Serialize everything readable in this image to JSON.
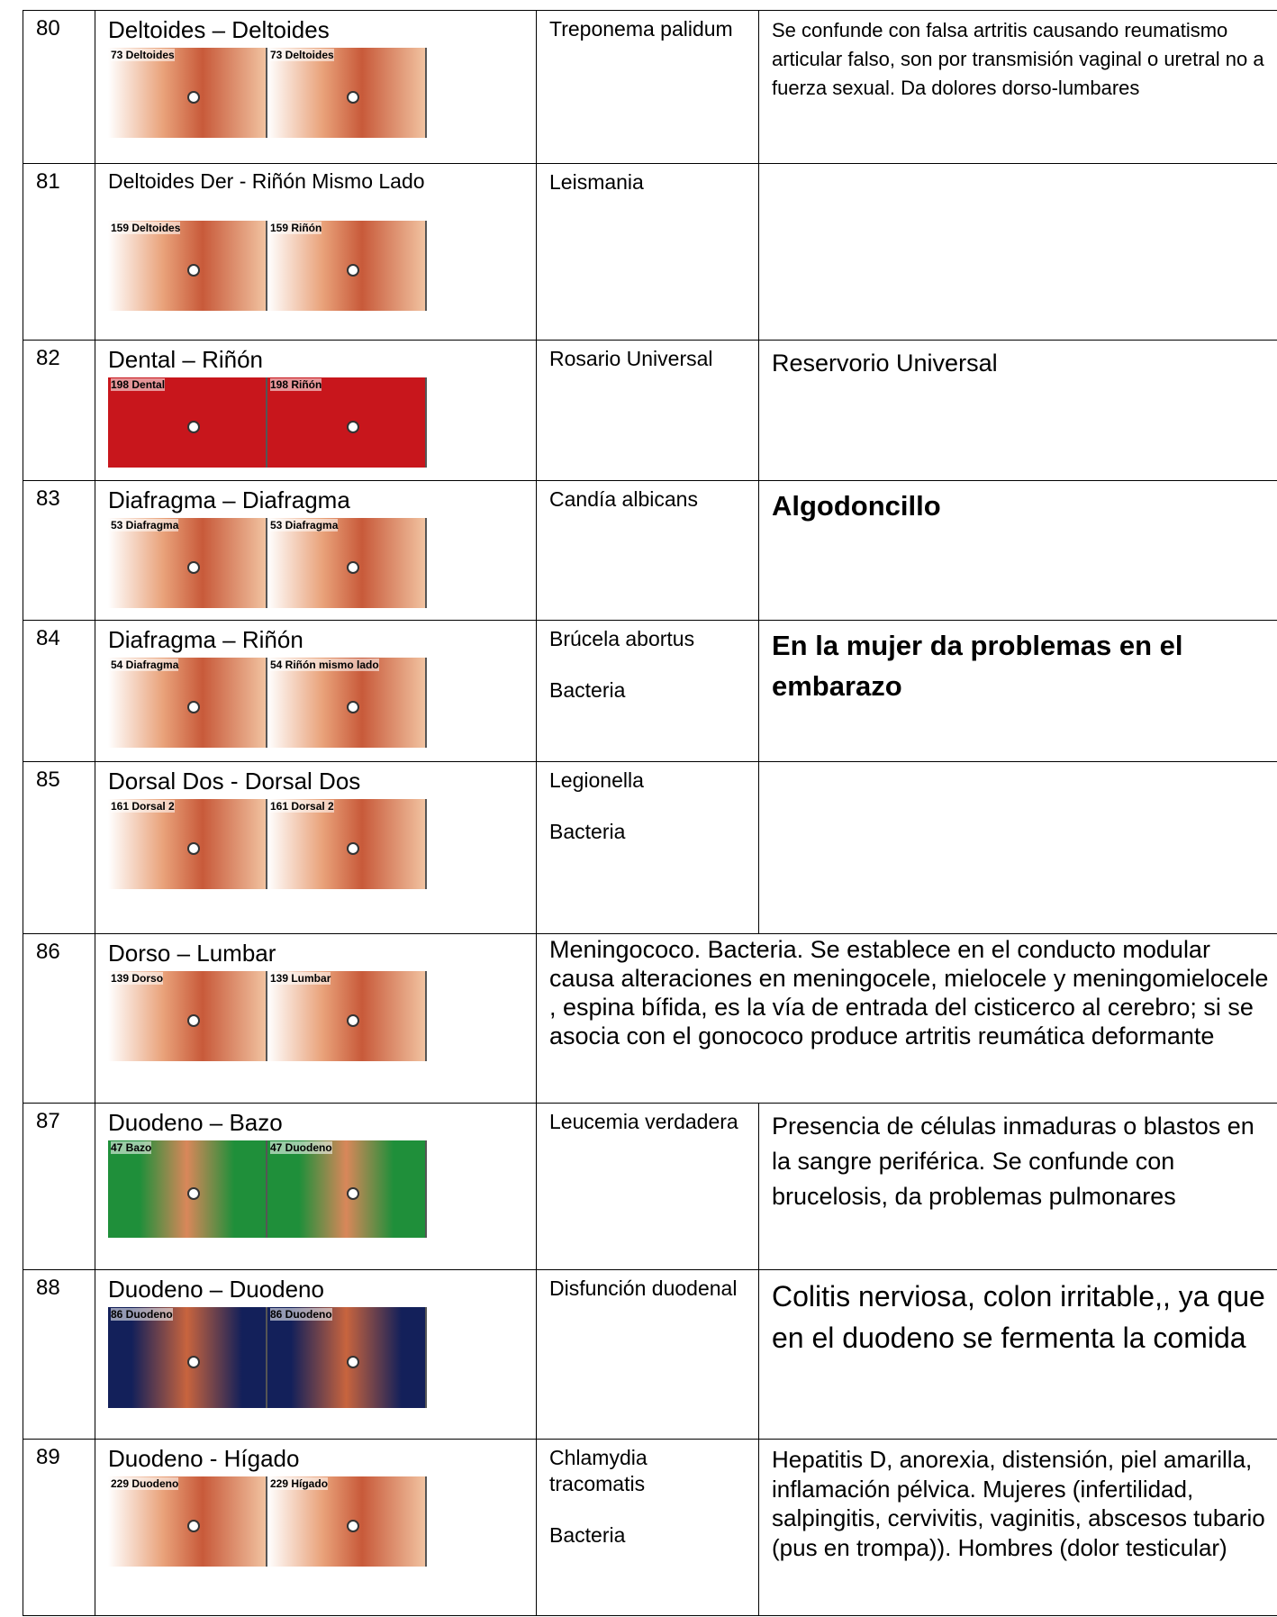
{
  "table": {
    "rows": [
      {
        "number": "80",
        "point": "Deltoides – Deltoides",
        "images": [
          "73 Deltoides",
          "73 Deltoides"
        ],
        "agent": [
          "Treponema palidum"
        ],
        "description": "Se confunde con falsa artritis causando reumatismo articular falso, son por transmisión vaginal o uretral no a fuerza sexual. Da dolores dorso-lumbares"
      },
      {
        "number": "81",
        "point": "Deltoides Der - Riñón Mismo Lado",
        "images": [
          "159 Deltoides",
          "159 Riñón"
        ],
        "agent": [
          "Leismania"
        ]
      },
      {
        "number": "82",
        "point": "Dental – Riñón",
        "images": [
          "198 Dental",
          "198 Riñón"
        ],
        "agent": [
          "Rosario Universal"
        ],
        "description": "Reservorio Universal"
      },
      {
        "number": "83",
        "point": "Diafragma – Diafragma",
        "images": [
          "53 Diafragma",
          "53 Diafragma"
        ],
        "agent": [
          "Candía albicans"
        ],
        "description": "Algodoncillo"
      },
      {
        "number": "84",
        "point": "Diafragma – Riñón",
        "images": [
          "54 Diafragma",
          "54 Riñón mismo lado"
        ],
        "agent": [
          "Brúcela abortus",
          "Bacteria"
        ],
        "description": "En la mujer da problemas en el embarazo"
      },
      {
        "number": "85",
        "point": "Dorsal Dos - Dorsal Dos",
        "images": [
          "161 Dorsal 2",
          "161 Dorsal 2"
        ],
        "agent": [
          "Legionella",
          "Bacteria"
        ]
      },
      {
        "number": "86",
        "point": "Dorso – Lumbar",
        "images": [
          "139 Dorso",
          "139 Lumbar"
        ],
        "merged": "Meningococo. Bacteria. Se establece en el conducto modular causa alteraciones en meningocele, mielocele y meningomielocele , espina bífida, es la vía de entrada del cisticerco al cerebro; si se asocia con el gonococo produce artritis reumática deformante"
      },
      {
        "number": "87",
        "point": "Duodeno – Bazo",
        "images": [
          "47 Bazo",
          "47 Duodeno"
        ],
        "agent": [
          "Leucemia verdadera"
        ],
        "description": "Presencia de células inmaduras o blastos en la sangre periférica. Se confunde con brucelosis, da problemas pulmonares"
      },
      {
        "number": "88",
        "point": "Duodeno – Duodeno",
        "images": [
          "86 Duodeno",
          "86 Duodeno"
        ],
        "agent": [
          "Disfunción duodenal"
        ],
        "description": "Colitis nerviosa, colon irritable,, ya que en el duodeno se fermenta la comida"
      },
      {
        "number": "89",
        "point": "Duodeno - Hígado",
        "images": [
          "229 Duodeno",
          "229 Hígado"
        ],
        "agent": [
          "Chlamydia tracomatis",
          "Bacteria"
        ],
        "description": "Hepatitis D, anorexia, distensión, piel amarilla, inflamación pélvica. Mujeres (infertilidad, salpingitis, cervivitis, vaginitis, abscesos tubario (pus en trompa)). Hombres (dolor testicular)"
      }
    ]
  }
}
